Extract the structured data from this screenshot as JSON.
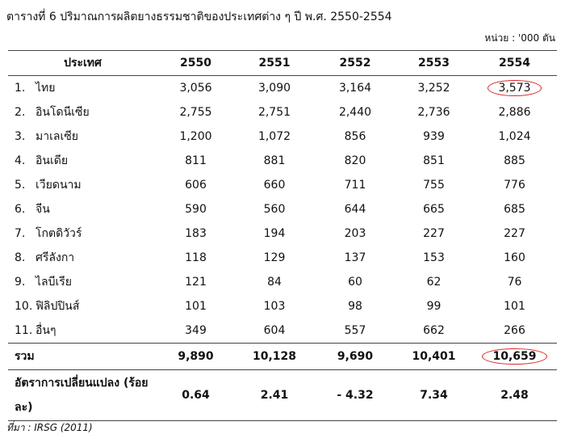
{
  "title": "ตารางที่  6   ปริมาณการผลิตยางธรรมชาติของประเทศต่าง ๆ ปี พ.ศ. 2550-2554",
  "unit": "หน่วย : '000 ตัน",
  "table": {
    "header": [
      "ประเทศ",
      "2550",
      "2551",
      "2552",
      "2553",
      "2554"
    ],
    "rows": [
      [
        "1.",
        "ไทย",
        "3,056",
        "3,090",
        "3,164",
        "3,252",
        "3,573"
      ],
      [
        "2.",
        "อินโดนีเซีย",
        "2,755",
        "2,751",
        "2,440",
        "2,736",
        "2,886"
      ],
      [
        "3.",
        "มาเลเซีย",
        "1,200",
        "1,072",
        "856",
        "939",
        "1,024"
      ],
      [
        "4.",
        "อินเดีย",
        "811",
        "881",
        "820",
        "851",
        "885"
      ],
      [
        "5.",
        "เวียดนาม",
        "606",
        "660",
        "711",
        "755",
        "776"
      ],
      [
        "6.",
        "จีน",
        "590",
        "560",
        "644",
        "665",
        "685"
      ],
      [
        "7.",
        "โกตดิวัวร์",
        "183",
        "194",
        "203",
        "227",
        "227"
      ],
      [
        "8.",
        "ศรีลังกา",
        "118",
        "129",
        "137",
        "153",
        "160"
      ],
      [
        "9.",
        "ไลบีเรีย",
        "121",
        "84",
        "60",
        "62",
        "76"
      ],
      [
        "10.",
        "ฟิลิปปินส์",
        "101",
        "103",
        "98",
        "99",
        "101"
      ],
      [
        "11.",
        "อื่นๆ",
        "349",
        "604",
        "557",
        "662",
        "266"
      ]
    ],
    "total": [
      "รวม",
      "9,890",
      "10,128",
      "9,690",
      "10,401",
      "10,659"
    ],
    "change": [
      "อัตราการเปลี่ยนแปลง (ร้อยละ)",
      "0.64",
      "2.41",
      "- 4.32",
      "7.34",
      "2.48"
    ]
  },
  "source": "ที่มา  :  IRSG (2011)"
}
